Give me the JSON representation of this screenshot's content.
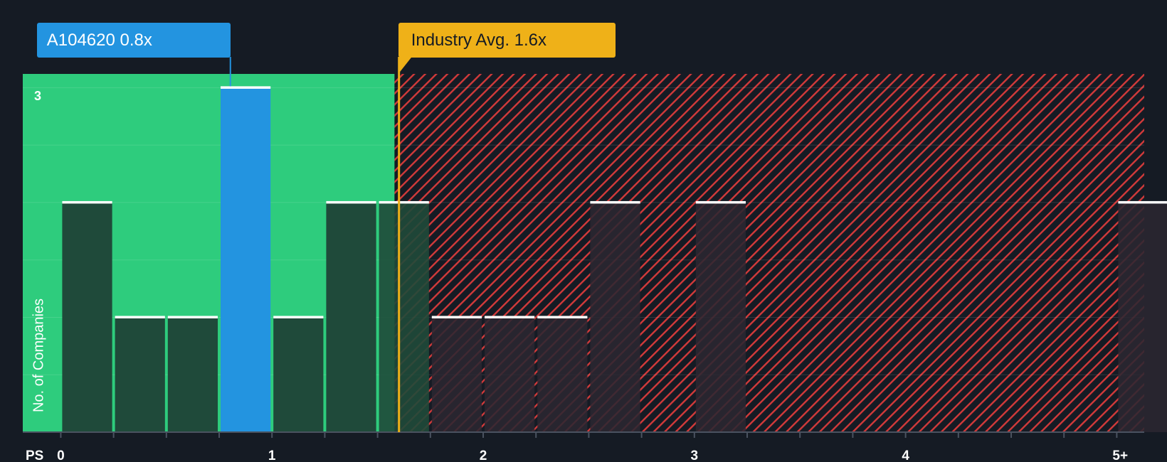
{
  "chart_data": {
    "type": "bar",
    "title": "",
    "xlabel": "PS",
    "ylabel": "No. of Companies",
    "x_tick_labels": [
      "0",
      "1",
      "2",
      "3",
      "4",
      "5+"
    ],
    "x_tick_values": [
      0,
      1,
      2,
      3,
      4,
      5
    ],
    "xlim": [
      -0.18,
      5.13
    ],
    "ylim": [
      0,
      3.12
    ],
    "y_tick_labels": [
      "3"
    ],
    "bin_width": 0.25,
    "bins": [
      {
        "x0": 0.0,
        "x1": 0.25,
        "count": 2
      },
      {
        "x0": 0.25,
        "x1": 0.5,
        "count": 1
      },
      {
        "x0": 0.5,
        "x1": 0.75,
        "count": 1
      },
      {
        "x0": 0.75,
        "x1": 1.0,
        "count": 3,
        "highlight": true
      },
      {
        "x0": 1.0,
        "x1": 1.25,
        "count": 1
      },
      {
        "x0": 1.25,
        "x1": 1.5,
        "count": 2
      },
      {
        "x0": 1.5,
        "x1": 1.75,
        "count": 2
      },
      {
        "x0": 1.75,
        "x1": 2.0,
        "count": 1
      },
      {
        "x0": 2.0,
        "x1": 2.25,
        "count": 1
      },
      {
        "x0": 2.25,
        "x1": 2.5,
        "count": 1
      },
      {
        "x0": 2.5,
        "x1": 2.75,
        "count": 2
      },
      {
        "x0": 3.0,
        "x1": 3.25,
        "count": 2
      },
      {
        "x0": 5.0,
        "x1": 5.25,
        "count": 2
      }
    ],
    "company": {
      "name": "A104620",
      "value": 0.8,
      "label": "A104620 0.8x"
    },
    "industry_avg": {
      "value": 1.6,
      "label": "Industry Avg. 1.6x"
    },
    "fair_range_end": 1.58,
    "colors": {
      "background": "#151b24",
      "undervalued": "#2ecc7d",
      "overvalued": "#d23a3a",
      "bar": "#1f4a3a",
      "bar_over": "#2b2731",
      "highlight": "#2394e0",
      "industry": "#efb118",
      "cap": "#ffffff",
      "axis_text": "#ffffff"
    }
  }
}
